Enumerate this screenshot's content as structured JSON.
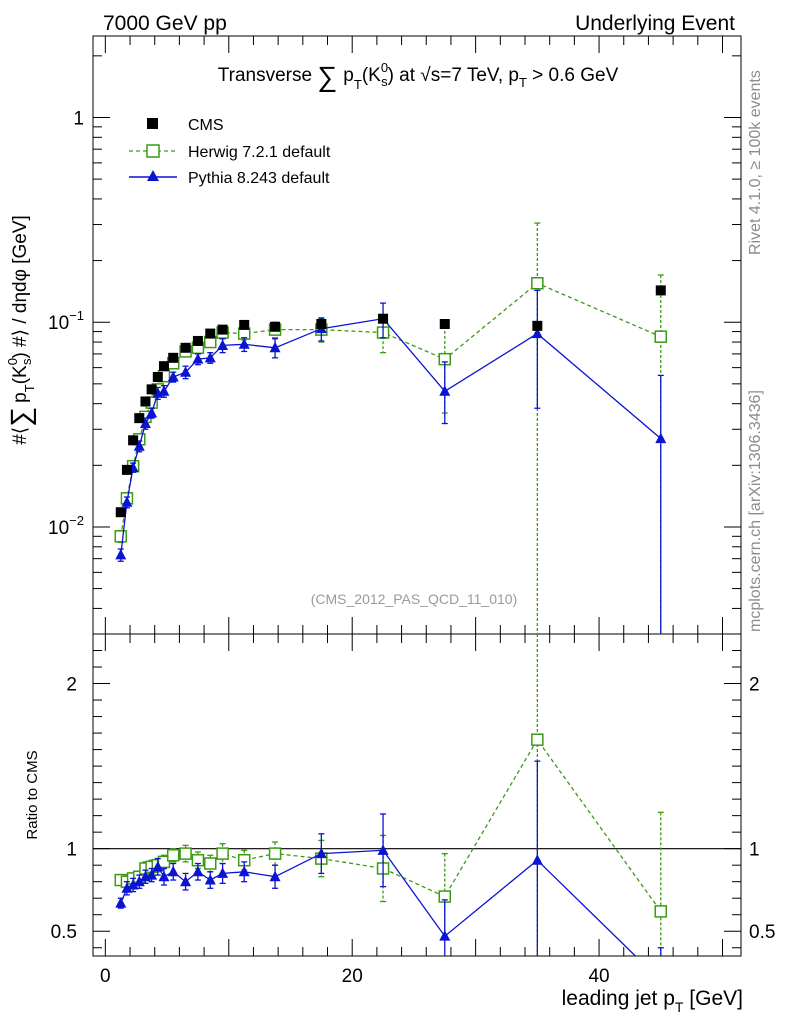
{
  "header": {
    "left": "7000 GeV pp",
    "right": "Underlying Event"
  },
  "side_labels": {
    "rivet": "Rivet 4.1.0, ≥ 100k events",
    "mcplots": "mcplots.cern.ch [arXiv:1306.3436]"
  },
  "chart_data": {
    "type": "scatter",
    "title_text": [
      "Transverse ",
      "∑",
      "p",
      "T",
      "(K",
      "0",
      "s",
      ")",
      " at √s=7 TeV, p",
      "T",
      " > 0.6 GeV"
    ],
    "watermark": "(CMS_2012_PAS_QCD_11_010)",
    "xlabel": "leading jet p",
    "xlabel_sub": "T",
    "xlabel_unit": " [GeV]",
    "ylabel_parts": [
      "#⟨",
      "∑",
      "p",
      "T",
      "(K",
      "0",
      "s",
      ")",
      " #⟩ / dηdφ [GeV]"
    ],
    "ratio_ylabel": "Ratio to CMS",
    "xlim": [
      -1,
      51.5
    ],
    "ylim": [
      0.003,
      2.5
    ],
    "ylog": true,
    "ratio_ylim": [
      0.35,
      2.3
    ],
    "xticks": [
      0,
      20,
      40
    ],
    "xtick_labels": [
      "0",
      "20",
      "40"
    ],
    "yticks_major": [
      {
        "value": 0.01,
        "base": "10",
        "exp": "−2"
      },
      {
        "value": 0.1,
        "base": "10",
        "exp": "−1"
      },
      {
        "value": 1,
        "base": "1",
        "exp": ""
      }
    ],
    "ratio_yticks": [
      {
        "value": 0.5,
        "label": "0.5"
      },
      {
        "value": 1,
        "label": "1"
      },
      {
        "value": 2,
        "label": "2"
      }
    ],
    "cms": {
      "name": "CMS",
      "x": [
        1.25,
        1.75,
        2.25,
        2.75,
        3.25,
        3.75,
        4.25,
        4.75,
        5.5,
        6.5,
        7.5,
        8.5,
        9.5,
        11.25,
        13.75,
        17.5,
        22.5,
        27.5,
        35.0,
        45.0
      ],
      "y": [
        0.0118,
        0.019,
        0.0265,
        0.034,
        0.041,
        0.047,
        0.054,
        0.061,
        0.067,
        0.075,
        0.081,
        0.088,
        0.092,
        0.097,
        0.095,
        0.098,
        0.104,
        0.098,
        0.096,
        0.143
      ]
    },
    "herwig": {
      "name": "Herwig 7.2.1 default",
      "color": "#3c9a14",
      "x": [
        1.25,
        1.75,
        2.25,
        2.75,
        3.25,
        3.75,
        4.25,
        4.75,
        5.5,
        6.5,
        7.5,
        8.5,
        9.5,
        11.25,
        13.75,
        17.5,
        22.5,
        27.5,
        35.0,
        45.0
      ],
      "y": [
        0.009,
        0.0138,
        0.0198,
        0.0268,
        0.0345,
        0.0405,
        0.047,
        0.0545,
        0.063,
        0.072,
        0.075,
        0.08,
        0.089,
        0.088,
        0.092,
        0.092,
        0.089,
        0.066,
        0.155,
        0.085
      ],
      "err_up": [
        0.0006,
        0.0009,
        0.0012,
        0.0015,
        0.002,
        0.002,
        0.0025,
        0.003,
        0.003,
        0.004,
        0.004,
        0.004,
        0.006,
        0.006,
        0.008,
        0.012,
        0.018,
        0.03,
        0.15,
        0.085
      ],
      "err_down": [
        0.0006,
        0.0009,
        0.0012,
        0.0015,
        0.002,
        0.002,
        0.0025,
        0.003,
        0.003,
        0.004,
        0.004,
        0.004,
        0.006,
        0.006,
        0.008,
        0.012,
        0.018,
        0.03,
        0.153,
        0.084
      ],
      "ratio": [
        0.81,
        0.8,
        0.82,
        0.83,
        0.88,
        0.89,
        0.9,
        0.92,
        0.96,
        0.97,
        0.93,
        0.91,
        0.97,
        0.93,
        0.97,
        0.94,
        0.88,
        0.71,
        1.66,
        0.62
      ],
      "ratio_err": [
        0.03,
        0.03,
        0.03,
        0.03,
        0.04,
        0.04,
        0.04,
        0.04,
        0.04,
        0.05,
        0.05,
        0.05,
        0.06,
        0.06,
        0.07,
        0.11,
        0.2,
        0.26,
        1.6,
        0.6
      ]
    },
    "pythia": {
      "name": "Pythia 8.243 default",
      "color": "#0a14d2",
      "x": [
        1.25,
        1.75,
        2.25,
        2.75,
        3.25,
        3.75,
        4.25,
        4.75,
        5.5,
        6.5,
        7.5,
        8.5,
        9.5,
        11.25,
        13.75,
        17.5,
        22.5,
        27.5,
        35.0,
        45.0
      ],
      "y": [
        0.0073,
        0.0132,
        0.0195,
        0.0248,
        0.032,
        0.036,
        0.045,
        0.046,
        0.054,
        0.057,
        0.066,
        0.067,
        0.077,
        0.078,
        0.075,
        0.093,
        0.104,
        0.046,
        0.088,
        0.027
      ],
      "err_up": [
        0.0005,
        0.0008,
        0.001,
        0.0015,
        0.002,
        0.002,
        0.003,
        0.003,
        0.003,
        0.004,
        0.004,
        0.004,
        0.006,
        0.006,
        0.008,
        0.012,
        0.02,
        0.018,
        0.055,
        0.028
      ],
      "err_down": [
        0.0005,
        0.0008,
        0.001,
        0.0015,
        0.002,
        0.002,
        0.003,
        0.003,
        0.003,
        0.004,
        0.004,
        0.004,
        0.006,
        0.006,
        0.008,
        0.012,
        0.02,
        0.014,
        0.05,
        0.0265
      ],
      "ratio": [
        0.67,
        0.76,
        0.78,
        0.8,
        0.83,
        0.84,
        0.89,
        0.83,
        0.86,
        0.8,
        0.86,
        0.81,
        0.85,
        0.86,
        0.83,
        0.97,
        0.99,
        0.47,
        0.93,
        0.2
      ],
      "ratio_err": [
        0.03,
        0.04,
        0.04,
        0.04,
        0.04,
        0.04,
        0.05,
        0.05,
        0.05,
        0.05,
        0.05,
        0.05,
        0.06,
        0.06,
        0.07,
        0.12,
        0.22,
        0.22,
        0.6,
        0.2
      ]
    }
  }
}
